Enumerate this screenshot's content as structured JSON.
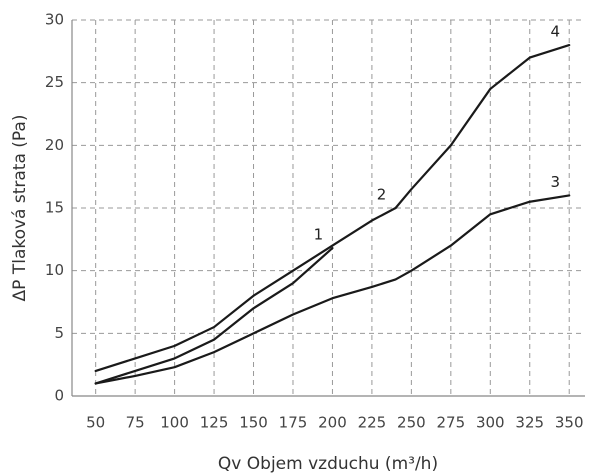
{
  "chart_data": {
    "type": "line",
    "x_label": "Qv Objem vzduchu (m³/h)",
    "y_label": "ΔP Tlaková strata (Pa)",
    "x": [
      50,
      75,
      100,
      125,
      150,
      175,
      200,
      225,
      240,
      250,
      275,
      300,
      325,
      350
    ],
    "series": [
      {
        "name": "1",
        "color": "#1a1a1a",
        "values": [
          1,
          2,
          3,
          4.5,
          7,
          9,
          11.8,
          null,
          null,
          null,
          null,
          null,
          null,
          null
        ]
      },
      {
        "name": "2",
        "color": "#1a1a1a",
        "values": [
          2,
          3,
          4,
          5.5,
          8,
          10,
          12,
          14,
          15,
          null,
          null,
          null,
          null,
          null
        ]
      },
      {
        "name": "3",
        "color": "#1a1a1a",
        "values": [
          1,
          1.6,
          2.3,
          3.5,
          5,
          6.5,
          7.8,
          8.7,
          9.3,
          10,
          12,
          14.5,
          15.5,
          16
        ]
      },
      {
        "name": "4",
        "color": "#1a1a1a",
        "values": [
          null,
          null,
          null,
          null,
          null,
          null,
          null,
          null,
          15,
          16.5,
          20,
          24.5,
          27,
          28
        ]
      }
    ],
    "xlim": [
      35,
      360
    ],
    "xticks": [
      50,
      75,
      100,
      125,
      150,
      175,
      200,
      225,
      250,
      275,
      300,
      325,
      350
    ],
    "ylim": [
      0,
      30
    ],
    "yticks": [
      0,
      5,
      10,
      15,
      20,
      25,
      30
    ],
    "grid": true
  }
}
